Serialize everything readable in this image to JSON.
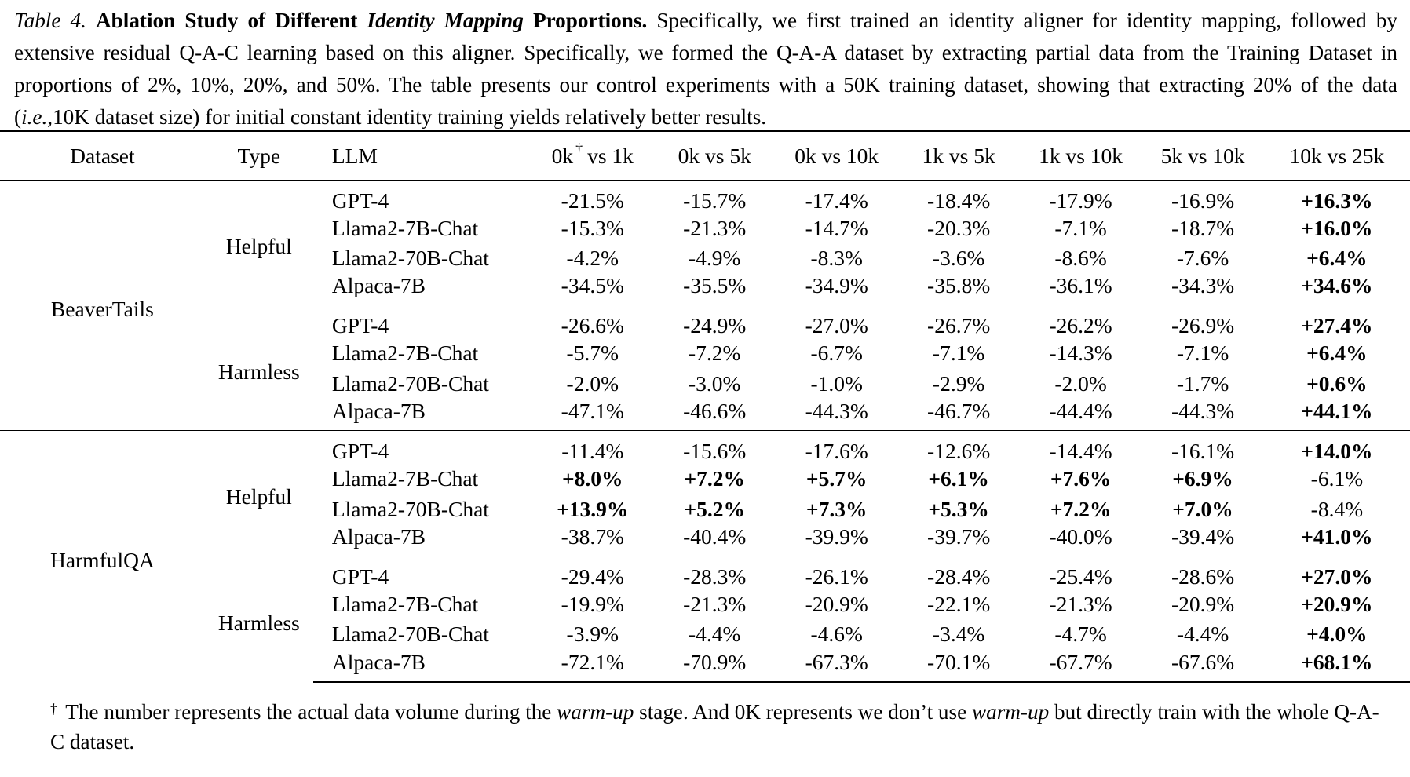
{
  "caption": {
    "label": "Table 4.",
    "title_part1": "Ablation Study of Different ",
    "title_italic": "Identity Mapping",
    "title_part2": " Proportions.",
    "text_part1": " Specifically, we first trained an identity aligner for identity mapping, followed by extensive residual Q-A-C learning based on this aligner. Specifically, we formed the Q-A-A dataset by extracting partial data from the Training Dataset in proportions of 2%, 10%, 20%, and 50%. The table presents our control experiments with a 50K training dataset, showing that extracting 20% of the data (",
    "text_italic": "i.e.",
    "text_part2": ",10K dataset size) for initial constant identity training yields relatively better results."
  },
  "table": {
    "headers": {
      "dataset": "Dataset",
      "type": "Type",
      "llm": "LLM",
      "c1_prefix": "0k",
      "c1_dagger": "†",
      "c1_suffix": "vs 1k",
      "c2": "0k vs 5k",
      "c3": "0k vs 10k",
      "c4": "1k vs 5k",
      "c5": "1k vs 10k",
      "c6": "5k vs 10k",
      "c7": "10k vs 25k"
    },
    "groups": [
      {
        "dataset": "BeaverTails",
        "subgroups": [
          {
            "type": "Helpful",
            "rows": [
              {
                "llm": "GPT-4",
                "values": [
                  "-21.5%",
                  "-15.7%",
                  "-17.4%",
                  "-18.4%",
                  "-17.9%",
                  "-16.9%",
                  "+16.3%"
                ]
              },
              {
                "llm": "Llama2-7B-Chat",
                "values": [
                  "-15.3%",
                  "-21.3%",
                  "-14.7%",
                  "-20.3%",
                  "-7.1%",
                  "-18.7%",
                  "+16.0%"
                ]
              },
              {
                "llm": "Llama2-70B-Chat",
                "values": [
                  "-4.2%",
                  "-4.9%",
                  "-8.3%",
                  "-3.6%",
                  "-8.6%",
                  "-7.6%",
                  "+6.4%"
                ]
              },
              {
                "llm": "Alpaca-7B",
                "values": [
                  "-34.5%",
                  "-35.5%",
                  "-34.9%",
                  "-35.8%",
                  "-36.1%",
                  "-34.3%",
                  "+34.6%"
                ]
              }
            ]
          },
          {
            "type": "Harmless",
            "rows": [
              {
                "llm": "GPT-4",
                "values": [
                  "-26.6%",
                  "-24.9%",
                  "-27.0%",
                  "-26.7%",
                  "-26.2%",
                  "-26.9%",
                  "+27.4%"
                ]
              },
              {
                "llm": "Llama2-7B-Chat",
                "values": [
                  "-5.7%",
                  "-7.2%",
                  "-6.7%",
                  "-7.1%",
                  "-14.3%",
                  "-7.1%",
                  "+6.4%"
                ]
              },
              {
                "llm": "Llama2-70B-Chat",
                "values": [
                  "-2.0%",
                  "-3.0%",
                  "-1.0%",
                  "-2.9%",
                  "-2.0%",
                  "-1.7%",
                  "+0.6%"
                ]
              },
              {
                "llm": "Alpaca-7B",
                "values": [
                  "-47.1%",
                  "-46.6%",
                  "-44.3%",
                  "-46.7%",
                  "-44.4%",
                  "-44.3%",
                  "+44.1%"
                ]
              }
            ]
          }
        ]
      },
      {
        "dataset": "HarmfulQA",
        "subgroups": [
          {
            "type": "Helpful",
            "rows": [
              {
                "llm": "GPT-4",
                "values": [
                  "-11.4%",
                  "-15.6%",
                  "-17.6%",
                  "-12.6%",
                  "-14.4%",
                  "-16.1%",
                  "+14.0%"
                ]
              },
              {
                "llm": "Llama2-7B-Chat",
                "values": [
                  "+8.0%",
                  "+7.2%",
                  "+5.7%",
                  "+6.1%",
                  "+7.6%",
                  "+6.9%",
                  "-6.1%"
                ]
              },
              {
                "llm": "Llama2-70B-Chat",
                "values": [
                  "+13.9%",
                  "+5.2%",
                  "+7.3%",
                  "+5.3%",
                  "+7.2%",
                  "+7.0%",
                  "-8.4%"
                ]
              },
              {
                "llm": "Alpaca-7B",
                "values": [
                  "-38.7%",
                  "-40.4%",
                  "-39.9%",
                  "-39.7%",
                  "-40.0%",
                  "-39.4%",
                  "+41.0%"
                ]
              }
            ]
          },
          {
            "type": "Harmless",
            "rows": [
              {
                "llm": "GPT-4",
                "values": [
                  "-29.4%",
                  "-28.3%",
                  "-26.1%",
                  "-28.4%",
                  "-25.4%",
                  "-28.6%",
                  "+27.0%"
                ]
              },
              {
                "llm": "Llama2-7B-Chat",
                "values": [
                  "-19.9%",
                  "-21.3%",
                  "-20.9%",
                  "-22.1%",
                  "-21.3%",
                  "-20.9%",
                  "+20.9%"
                ]
              },
              {
                "llm": "Llama2-70B-Chat",
                "values": [
                  "-3.9%",
                  "-4.4%",
                  "-4.6%",
                  "-3.4%",
                  "-4.7%",
                  "-4.4%",
                  "+4.0%"
                ]
              },
              {
                "llm": "Alpaca-7B",
                "values": [
                  "-72.1%",
                  "-70.9%",
                  "-67.3%",
                  "-70.1%",
                  "-67.7%",
                  "-67.6%",
                  "+68.1%"
                ]
              }
            ]
          }
        ]
      }
    ]
  },
  "footnote": {
    "dagger": "†",
    "part1": " The number represents the actual data volume during the ",
    "italic1": "warm-up",
    "part2": " stage. And 0K represents we don’t use ",
    "italic2": "warm-up",
    "part3": " but directly train with the whole Q-A-C dataset."
  }
}
